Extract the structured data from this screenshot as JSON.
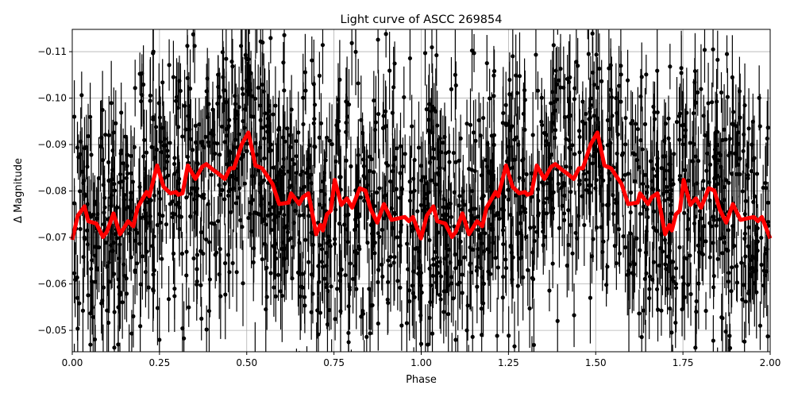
{
  "chart_data": {
    "type": "scatter",
    "title": "Light curve of ASCC 269854",
    "xlabel": "Phase",
    "ylabel": "Δ Magnitude",
    "xlim": [
      0,
      2
    ],
    "ylim": [
      -0.0454,
      -0.1148
    ],
    "y_inverted": true,
    "grid": true,
    "xticks": [
      "0.00",
      "0.25",
      "0.50",
      "0.75",
      "1.00",
      "1.25",
      "1.50",
      "1.75",
      "2.00"
    ],
    "xtick_values": [
      0,
      0.25,
      0.5,
      0.75,
      1.0,
      1.25,
      1.5,
      1.75,
      2.0
    ],
    "yticks": [
      "−0.11",
      "−0.10",
      "−0.09",
      "−0.08",
      "−0.07",
      "−0.06",
      "−0.05"
    ],
    "ytick_values": [
      -0.11,
      -0.1,
      -0.09,
      -0.08,
      -0.07,
      -0.06,
      -0.05
    ],
    "observations": {
      "color": "#000000",
      "marker": "dot with vertical error bar",
      "scatter_sd": 0.015
    },
    "binned_curve": {
      "color": "#ff0000",
      "x": [
        0.0,
        0.016,
        0.035,
        0.046,
        0.069,
        0.088,
        0.099,
        0.118,
        0.137,
        0.16,
        0.175,
        0.187,
        0.213,
        0.221,
        0.243,
        0.262,
        0.281,
        0.297,
        0.304,
        0.316,
        0.331,
        0.353,
        0.372,
        0.384,
        0.403,
        0.418,
        0.437,
        0.452,
        0.463,
        0.486,
        0.505,
        0.525,
        0.544,
        0.574,
        0.593,
        0.62,
        0.627,
        0.65,
        0.661,
        0.677,
        0.699,
        0.711,
        0.718,
        0.73,
        0.741,
        0.752,
        0.771,
        0.787,
        0.802,
        0.824,
        0.84,
        0.855,
        0.874,
        0.893,
        0.915,
        0.934,
        0.953,
        0.965,
        0.976,
        0.999,
        1.016,
        1.035,
        1.046,
        1.069,
        1.088,
        1.099,
        1.118,
        1.137,
        1.16,
        1.175,
        1.187,
        1.213,
        1.221,
        1.243,
        1.262,
        1.281,
        1.297,
        1.304,
        1.316,
        1.331,
        1.353,
        1.372,
        1.384,
        1.403,
        1.418,
        1.437,
        1.452,
        1.463,
        1.486,
        1.505,
        1.525,
        1.544,
        1.574,
        1.593,
        1.62,
        1.627,
        1.65,
        1.661,
        1.677,
        1.699,
        1.711,
        1.718,
        1.73,
        1.741,
        1.752,
        1.771,
        1.787,
        1.802,
        1.824,
        1.84,
        1.855,
        1.874,
        1.893,
        1.915,
        1.934,
        1.953,
        1.965,
        1.976,
        2.0
      ],
      "y": [
        -0.0695,
        -0.0747,
        -0.0767,
        -0.0735,
        -0.073,
        -0.0701,
        -0.0712,
        -0.0752,
        -0.0707,
        -0.0735,
        -0.0724,
        -0.0764,
        -0.0798,
        -0.0789,
        -0.0855,
        -0.0809,
        -0.0795,
        -0.0798,
        -0.0792,
        -0.0795,
        -0.0855,
        -0.0826,
        -0.0852,
        -0.0858,
        -0.0846,
        -0.0838,
        -0.0826,
        -0.0849,
        -0.0849,
        -0.0901,
        -0.0926,
        -0.0855,
        -0.0849,
        -0.0815,
        -0.0772,
        -0.0775,
        -0.0795,
        -0.0772,
        -0.0787,
        -0.0795,
        -0.0707,
        -0.0727,
        -0.0715,
        -0.075,
        -0.0758,
        -0.0824,
        -0.077,
        -0.0784,
        -0.0764,
        -0.0806,
        -0.0801,
        -0.0761,
        -0.0732,
        -0.0772,
        -0.0738,
        -0.0741,
        -0.0744,
        -0.0735,
        -0.0744,
        -0.0698,
        -0.0747,
        -0.0767,
        -0.0735,
        -0.073,
        -0.0701,
        -0.0712,
        -0.0752,
        -0.0707,
        -0.0735,
        -0.0724,
        -0.0764,
        -0.0798,
        -0.0789,
        -0.0855,
        -0.0809,
        -0.0795,
        -0.0798,
        -0.0792,
        -0.0795,
        -0.0855,
        -0.0826,
        -0.0852,
        -0.0858,
        -0.0846,
        -0.0838,
        -0.0826,
        -0.0849,
        -0.0849,
        -0.0901,
        -0.0926,
        -0.0855,
        -0.0849,
        -0.0815,
        -0.0772,
        -0.0775,
        -0.0795,
        -0.0772,
        -0.0787,
        -0.0795,
        -0.0707,
        -0.0727,
        -0.0715,
        -0.075,
        -0.0758,
        -0.0824,
        -0.077,
        -0.0784,
        -0.0764,
        -0.0806,
        -0.0801,
        -0.0761,
        -0.0732,
        -0.0772,
        -0.0738,
        -0.0741,
        -0.0744,
        -0.0735,
        -0.0744,
        -0.0698
      ]
    }
  }
}
